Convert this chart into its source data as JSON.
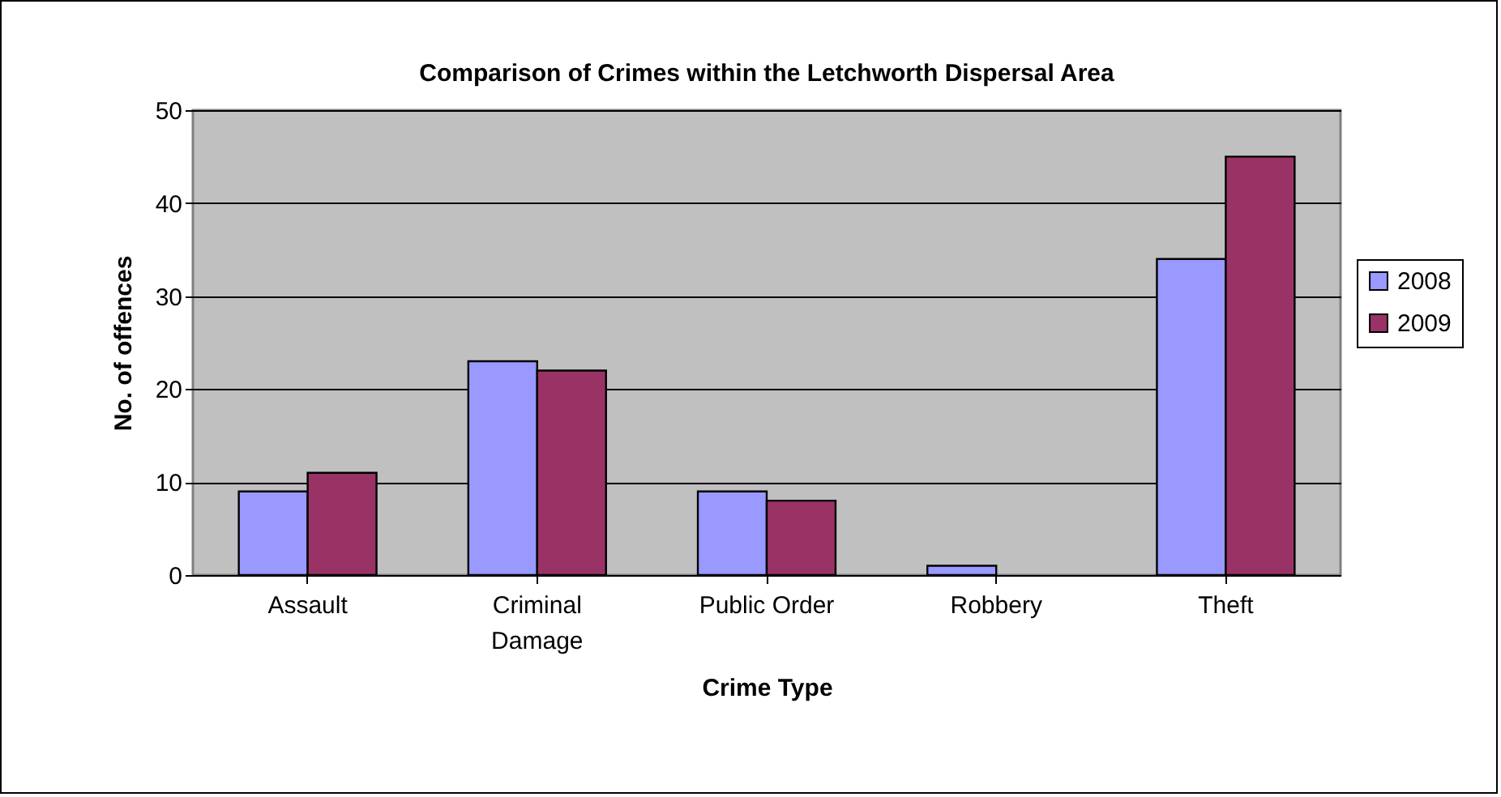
{
  "chart_data": {
    "type": "bar",
    "title": "Comparison of Crimes within the Letchworth Dispersal Area",
    "xlabel": "Crime Type",
    "ylabel": "No. of offences",
    "categories": [
      "Assault",
      "Criminal Damage",
      "Public Order",
      "Robbery",
      "Theft"
    ],
    "series": [
      {
        "name": "2008",
        "color": "#9999ff",
        "values": [
          9,
          23,
          9,
          1,
          34
        ]
      },
      {
        "name": "2009",
        "color": "#993366",
        "values": [
          11,
          22,
          8,
          0,
          45
        ]
      }
    ],
    "ylim": [
      0,
      50
    ],
    "yticks": [
      0,
      10,
      20,
      30,
      40,
      50
    ],
    "grid": "y",
    "legend": "right"
  }
}
